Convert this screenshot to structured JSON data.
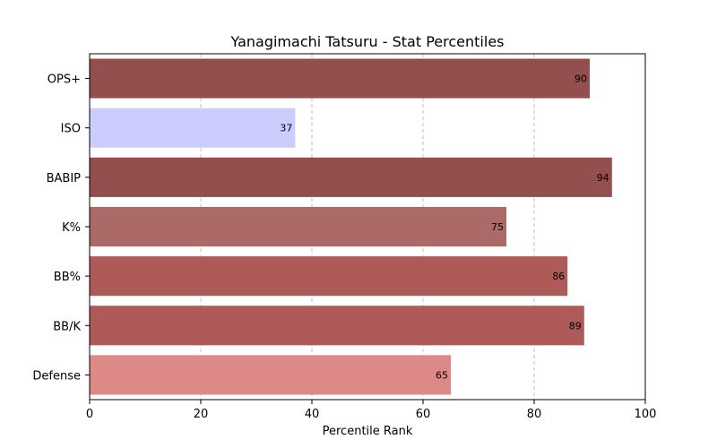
{
  "chart_data": {
    "type": "bar",
    "orientation": "horizontal",
    "title": "Yanagimachi Tatsuru - Stat Percentiles",
    "xlabel": "Percentile Rank",
    "ylabel": "",
    "xlim": [
      0,
      100
    ],
    "xticks": [
      0,
      20,
      40,
      60,
      80,
      100
    ],
    "grid": "x-dashed",
    "categories": [
      "OPS+",
      "ISO",
      "BABIP",
      "K%",
      "BB%",
      "BB/K",
      "Defense"
    ],
    "values": [
      90,
      37,
      94,
      75,
      86,
      89,
      65
    ],
    "colors": [
      "#934e4e",
      "#ccccff",
      "#934e4e",
      "#ab6967",
      "#ad5a59",
      "#ad5a59",
      "#dc8987"
    ]
  }
}
